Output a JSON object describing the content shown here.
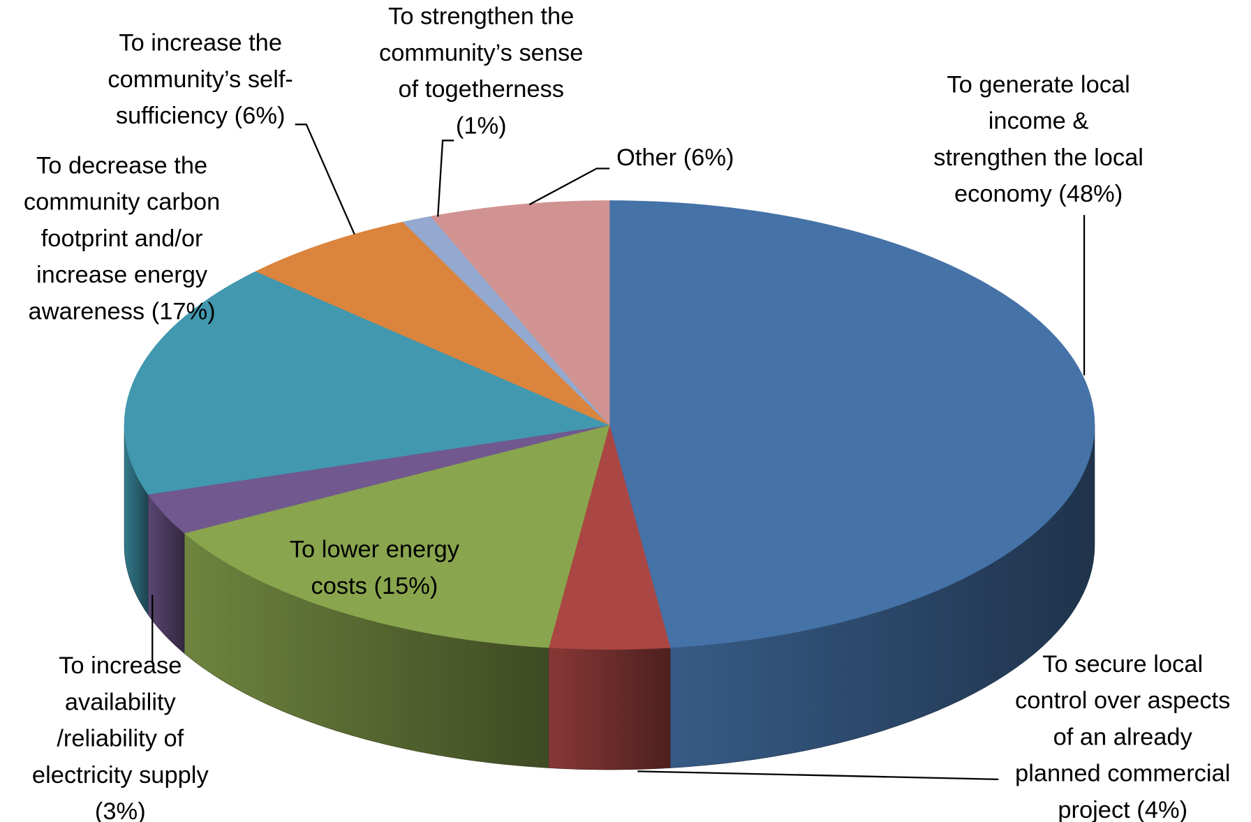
{
  "chart_data": {
    "type": "pie3d",
    "categories": [
      [
        "To generate local",
        "income &",
        "strengthen the local",
        "economy (48%)"
      ],
      [
        "To secure local",
        "control over aspects",
        "of an already",
        "planned commercial",
        "project  (4%)"
      ],
      [
        "To lower energy",
        "costs (15%)"
      ],
      [
        "To increase",
        "availability",
        "/reliability of",
        "electricity supply",
        "(3%)"
      ],
      [
        "To decrease the",
        "community carbon",
        "footprint and/or",
        "increase energy",
        "awareness (17%)"
      ],
      [
        "To increase the",
        "community’s self-",
        "sufficiency (6%)"
      ],
      [
        "To strengthen the",
        "community’s sense",
        "of togetherness",
        "(1%)"
      ],
      [
        "Other (6%)"
      ]
    ],
    "values": [
      48,
      4,
      15,
      3,
      17,
      6,
      1,
      6
    ],
    "colors": [
      "#4572A7",
      "#AA4643",
      "#89A54E",
      "#71588F",
      "#4198AF",
      "#DB843D",
      "#93A9CF",
      "#D19392"
    ]
  }
}
